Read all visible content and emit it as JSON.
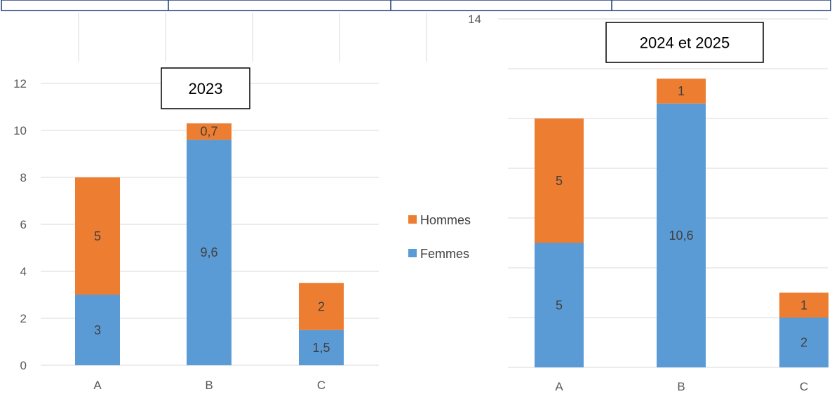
{
  "colors": {
    "hommes": "#ED7D31",
    "femmes": "#5B9BD5",
    "gridline": "#D9D9D9",
    "table_border": "#1F3B73"
  },
  "legend": {
    "items": [
      {
        "name": "Hommes",
        "color": "#ED7D31"
      },
      {
        "name": "Femmes",
        "color": "#5B9BD5"
      }
    ]
  },
  "chart_data": [
    {
      "type": "bar",
      "stacked": true,
      "title": "2023",
      "categories": [
        "A",
        "B",
        "C"
      ],
      "series": [
        {
          "name": "Femmes",
          "values": [
            3,
            9.6,
            1.5
          ],
          "labels": [
            "3",
            "9,6",
            "1,5"
          ]
        },
        {
          "name": "Hommes",
          "values": [
            5,
            0.7,
            2
          ],
          "labels": [
            "5",
            "0,7",
            "2"
          ]
        }
      ],
      "ylim": [
        0,
        12
      ],
      "yticks": [
        "0",
        "2",
        "4",
        "6",
        "8",
        "10",
        "12"
      ],
      "grid": true,
      "xlabel": "",
      "ylabel": ""
    },
    {
      "type": "bar",
      "stacked": true,
      "title": "2024 et 2025",
      "categories": [
        "A",
        "B",
        "C"
      ],
      "series": [
        {
          "name": "Femmes",
          "values": [
            5,
            10.6,
            2
          ],
          "labels": [
            "5",
            "10,6",
            "2"
          ]
        },
        {
          "name": "Hommes",
          "values": [
            5,
            1,
            1
          ],
          "labels": [
            "5",
            "1",
            "1"
          ]
        }
      ],
      "ylim": [
        0,
        14
      ],
      "yticks": [
        "14"
      ],
      "grid": true,
      "xlabel": "",
      "ylabel": ""
    }
  ]
}
